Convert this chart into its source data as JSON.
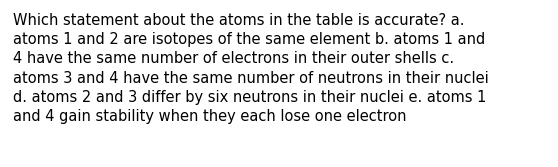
{
  "text": "Which statement about the atoms in the table is accurate? a.\natoms 1 and 2 are isotopes of the same element b. atoms 1 and\n4 have the same number of electrons in their outer shells c.\natoms 3 and 4 have the same number of neutrons in their nuclei\nd. atoms 2 and 3 differ by six neutrons in their nuclei e. atoms 1\nand 4 gain stability when they each lose one electron",
  "background_color": "#ffffff",
  "text_color": "#000000",
  "font_size": 10.5,
  "font_family": "DejaVu Sans",
  "fig_width": 5.58,
  "fig_height": 1.67,
  "dpi": 100
}
